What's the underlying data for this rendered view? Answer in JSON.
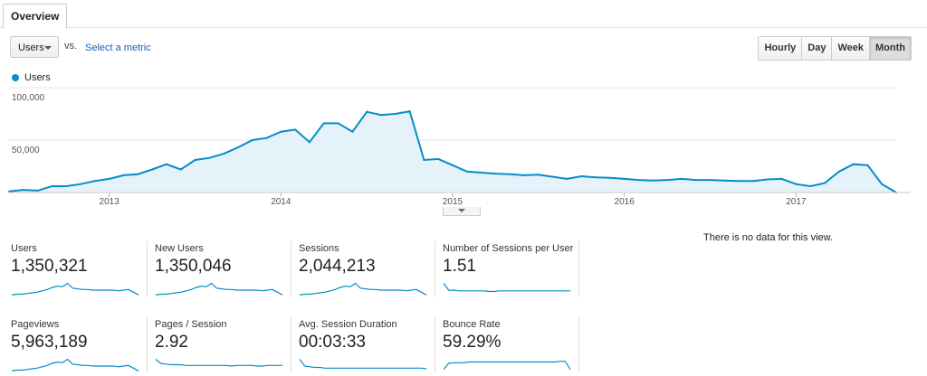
{
  "tabs": {
    "overview": "Overview"
  },
  "controls": {
    "metric": "Users",
    "vs": "vs.",
    "select_metric": "Select a metric",
    "granularity": [
      "Hourly",
      "Day",
      "Week",
      "Month"
    ],
    "active_granularity": "Month"
  },
  "legend": {
    "series": "Users"
  },
  "colors": {
    "line": "#058dc7",
    "fill": "#e6f2f9",
    "grid": "#e6e6e6"
  },
  "chart_data": {
    "type": "area",
    "title": "",
    "ylim": [
      0,
      100000
    ],
    "y_ticks": [
      {
        "value": 100000,
        "label": "100,000"
      },
      {
        "value": 50000,
        "label": "50,000"
      }
    ],
    "x_ticks": [
      "2013",
      "2014",
      "2015",
      "2016",
      "2017"
    ],
    "x_start": "2012-06",
    "grid": true,
    "series": [
      {
        "name": "Users",
        "values": [
          1000,
          2500,
          1800,
          6000,
          6000,
          8000,
          11000,
          13000,
          16500,
          17500,
          22000,
          27000,
          22000,
          31000,
          33000,
          37000,
          43000,
          50000,
          52000,
          58000,
          60000,
          48000,
          66000,
          66000,
          58000,
          77000,
          74000,
          75000,
          77500,
          31000,
          32000,
          26000,
          20000,
          19000,
          18000,
          17500,
          16500,
          17000,
          15000,
          13000,
          15500,
          14500,
          14000,
          13000,
          12000,
          11500,
          12000,
          13000,
          12000,
          12000,
          11500,
          11000,
          11000,
          12500,
          13000,
          8000,
          6000,
          9000,
          20000,
          27000,
          26000,
          8000,
          0
        ]
      }
    ]
  },
  "nodata": "There is no data for this view.",
  "scorecards": [
    {
      "label": "Users",
      "value": "1,350,321",
      "spark": [
        1,
        2,
        2,
        3,
        4,
        5,
        7,
        9,
        12,
        14,
        13,
        18,
        11,
        10,
        9,
        9,
        8,
        8,
        8,
        8,
        8,
        7,
        8,
        9,
        5,
        1
      ]
    },
    {
      "label": "New Users",
      "value": "1,350,046",
      "spark": [
        1,
        2,
        2,
        3,
        4,
        5,
        7,
        9,
        12,
        14,
        13,
        18,
        11,
        10,
        9,
        9,
        8,
        8,
        8,
        8,
        8,
        7,
        8,
        9,
        5,
        1
      ]
    },
    {
      "label": "Sessions",
      "value": "2,044,213",
      "spark": [
        1,
        2,
        2,
        3,
        4,
        5,
        7,
        9,
        12,
        14,
        13,
        18,
        11,
        10,
        9,
        9,
        8,
        8,
        8,
        8,
        8,
        7,
        8,
        9,
        5,
        1
      ]
    },
    {
      "label": "Number of Sessions per User",
      "value": "1.51",
      "spark": [
        18,
        8,
        8,
        7,
        7,
        7,
        7,
        7,
        7,
        6,
        6,
        7,
        7,
        7,
        7,
        7,
        7,
        7,
        7,
        7,
        7,
        7,
        7,
        7,
        7,
        7
      ]
    },
    {
      "label": "Pageviews",
      "value": "5,963,189",
      "spark": [
        1,
        2,
        2,
        3,
        4,
        5,
        7,
        9,
        12,
        14,
        13,
        18,
        11,
        10,
        9,
        9,
        8,
        8,
        8,
        8,
        8,
        7,
        8,
        9,
        5,
        1
      ]
    },
    {
      "label": "Pages / Session",
      "value": "2.92",
      "spark": [
        18,
        12,
        11,
        10,
        10,
        10,
        9,
        9,
        9,
        9,
        9,
        9,
        9,
        9,
        9,
        8,
        9,
        9,
        9,
        9,
        8,
        8,
        9,
        9,
        9,
        9
      ]
    },
    {
      "label": "Avg. Session Duration",
      "value": "00:03:33",
      "spark": [
        18,
        8,
        7,
        6,
        6,
        5,
        5,
        5,
        5,
        5,
        5,
        5,
        5,
        5,
        5,
        5,
        5,
        5,
        5,
        5,
        5,
        5,
        5,
        5,
        5,
        4
      ]
    },
    {
      "label": "Bounce Rate",
      "value": "59.29%",
      "spark": [
        3,
        12,
        13,
        13,
        13,
        14,
        14,
        14,
        14,
        14,
        14,
        14,
        14,
        14,
        14,
        14,
        14,
        14,
        14,
        14,
        14,
        14,
        14,
        15,
        15,
        3
      ]
    }
  ]
}
